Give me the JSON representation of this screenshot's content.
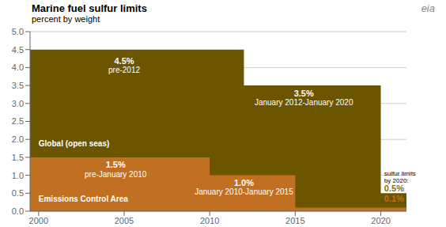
{
  "chart_data": {
    "type": "area",
    "title": "Marine fuel sulfur limits",
    "subtitle": "percent by weight",
    "line_style": "step",
    "x": [
      1999.5,
      2010,
      2012,
      2015,
      2020,
      2021.5
    ],
    "series": [
      {
        "color": "#6B5500",
        "values": [
          4.5,
          4.5,
          3.5,
          3.5,
          0.5,
          0.5
        ]
      },
      {
        "color": "#C07020",
        "values": [
          1.5,
          1.0,
          1.0,
          0.1,
          0.1,
          0.1
        ]
      }
    ],
    "xlim": [
      1999.5,
      2021.5
    ],
    "xticks": [
      2000,
      2005,
      2010,
      2015,
      2020
    ],
    "ylim": [
      0,
      5.0
    ],
    "yticks": [
      {
        "value": 0,
        "label": "0.0"
      },
      0.5,
      {
        "value": 1,
        "label": "1.0"
      },
      1.5,
      {
        "value": 2,
        "label": "2.0"
      },
      2.5,
      {
        "value": 3,
        "label": "3.0"
      },
      3.5,
      {
        "value": 4,
        "label": "4.0"
      },
      4.5,
      {
        "value": 5,
        "label": "5.0"
      }
    ],
    "grid": true,
    "annotations": [
      {
        "text": "4.5%",
        "x": 2005,
        "y": 4.28,
        "color": "white",
        "align": "center"
      },
      {
        "text": "pre-2012",
        "x": 2005,
        "y": 4.0,
        "color": "white",
        "align": "center"
      },
      {
        "text": "3.5%",
        "x": 2015.5,
        "y": 3.38,
        "color": "white",
        "align": "center"
      },
      {
        "text": "January 2012-January 2020",
        "x": 2015.5,
        "y": 3.1,
        "color": "white",
        "align": "center"
      },
      {
        "text": "Global (open seas)",
        "x": 2000.0,
        "y": 1.95,
        "color": "white",
        "align": "left"
      },
      {
        "text": "1.5%",
        "x": 2004.5,
        "y": 1.38,
        "color": "white",
        "align": "center"
      },
      {
        "text": "pre-January 2010",
        "x": 2004.5,
        "y": 1.1,
        "color": "white",
        "align": "center"
      },
      {
        "text": "1.0%",
        "x": 2012.0,
        "y": 0.88,
        "color": "white",
        "align": "center"
      },
      {
        "text": "January 2010-January 2015",
        "x": 2012.0,
        "y": 0.62,
        "color": "white",
        "align": "center"
      },
      {
        "text": "Emissions Control Area",
        "x": 2000.0,
        "y": 0.42,
        "color": "white",
        "align": "left"
      },
      {
        "text": "sulfur limits\nby 2020:",
        "x": 2020.2,
        "y": 1.12,
        "color": "black",
        "align": "left"
      },
      {
        "text": "0.5%",
        "x": 2020.2,
        "y": 0.72,
        "color": "#8B7000",
        "align": "left"
      },
      {
        "text": "0.1%",
        "x": 2020.2,
        "y": 0.45,
        "color": "#C07020",
        "align": "left"
      },
      {
        "text": "eia",
        "color": "#888888"
      }
    ]
  }
}
